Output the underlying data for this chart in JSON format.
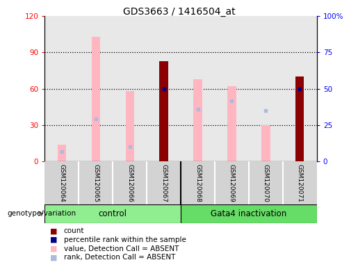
{
  "title": "GDS3663 / 1416504_at",
  "samples": [
    "GSM120064",
    "GSM120065",
    "GSM120066",
    "GSM120067",
    "GSM120068",
    "GSM120069",
    "GSM120070",
    "GSM120071"
  ],
  "count": [
    null,
    null,
    null,
    83,
    null,
    null,
    null,
    70
  ],
  "percentile_rank": [
    null,
    null,
    null,
    50,
    null,
    null,
    null,
    50
  ],
  "value_absent": [
    14,
    103,
    58,
    null,
    68,
    62,
    30,
    null
  ],
  "rank_absent": [
    6.7,
    29.2,
    10.0,
    null,
    35.8,
    41.7,
    35.0,
    null
  ],
  "ylim_left": [
    0,
    120
  ],
  "ylim_right": [
    0,
    100
  ],
  "yticks_left": [
    0,
    30,
    60,
    90,
    120
  ],
  "yticks_right": [
    0,
    25,
    50,
    75,
    100
  ],
  "yticklabels_left": [
    "0",
    "30",
    "60",
    "90",
    "120"
  ],
  "yticklabels_right": [
    "0",
    "25",
    "50",
    "75",
    "100%"
  ],
  "color_count": "#8B0000",
  "color_rank": "#00008B",
  "color_value_absent": "#FFB6C1",
  "color_rank_absent": "#AABBDD",
  "bg_color_plot": "#E8E8E8",
  "bg_color_control": "#90EE90",
  "bg_color_gata4": "#66EE66",
  "bar_width": 0.25
}
